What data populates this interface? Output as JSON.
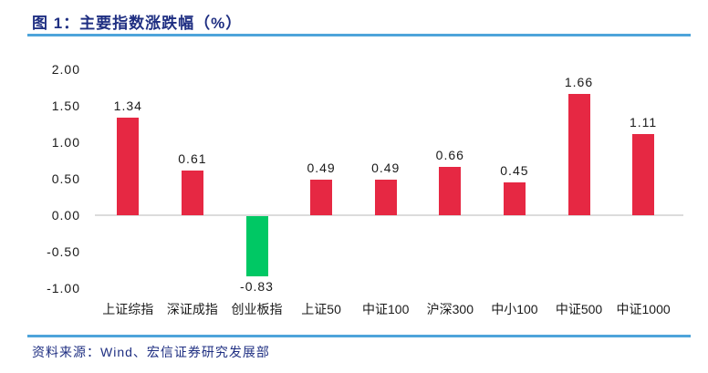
{
  "header": {
    "title": "图 1：主要指数涨跌幅（%）"
  },
  "footer": {
    "source": "资料来源：Wind、宏信证券研究发展部"
  },
  "chart_data": {
    "type": "bar",
    "title": "主要指数涨跌幅（%）",
    "categories": [
      "上证综指",
      "深证成指",
      "创业板指",
      "上证50",
      "中证100",
      "沪深300",
      "中小100",
      "中证500",
      "中证1000"
    ],
    "values": [
      1.34,
      0.61,
      -0.83,
      0.49,
      0.49,
      0.66,
      0.45,
      1.66,
      1.11
    ],
    "value_labels": [
      "1.34",
      "0.61",
      "-0.83",
      "0.49",
      "0.49",
      "0.66",
      "0.45",
      "1.66",
      "1.11"
    ],
    "xlabel": "",
    "ylabel": "",
    "ylim": [
      -1.0,
      2.0
    ],
    "yticks": [
      2.0,
      1.5,
      1.0,
      0.5,
      0.0,
      -0.5,
      -1.0
    ],
    "ytick_labels": [
      "2.00",
      "1.50",
      "1.00",
      "0.50",
      "0.00",
      "-0.50",
      "-1.00"
    ],
    "grid": false,
    "legend": "none",
    "colors": {
      "positive_bar": "#E62843",
      "negative_bar": "#00C864",
      "zero_axis_line": "#DCDCDC",
      "title_text": "#1F2F82",
      "divider_line": "#4EA4DA",
      "label_text": "#1a1a1a"
    }
  }
}
